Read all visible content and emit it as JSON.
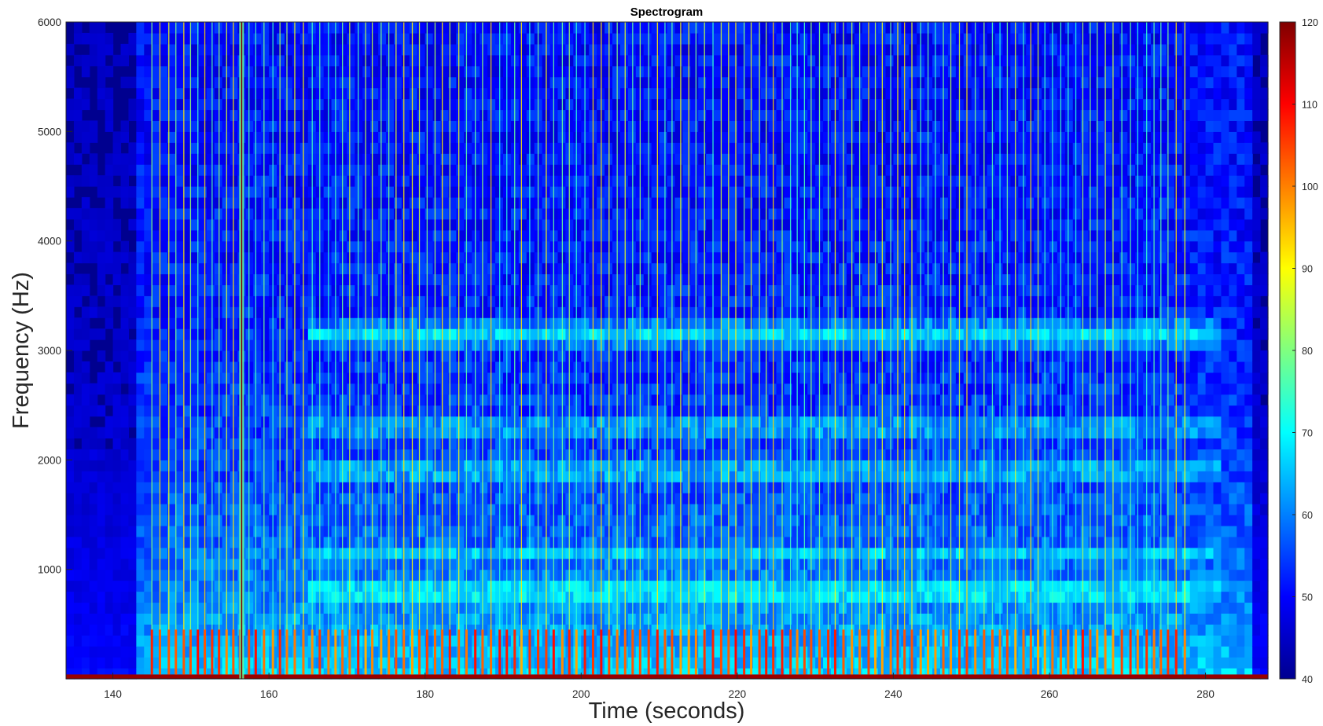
{
  "chart_data": {
    "type": "heatmap",
    "title": "Spectrogram",
    "xlabel": "Time (seconds)",
    "ylabel": "Frequency (Hz)",
    "xlim": [
      134,
      288
    ],
    "ylim": [
      0,
      6000
    ],
    "x_ticks": [
      140,
      160,
      180,
      200,
      220,
      240,
      260,
      280
    ],
    "y_ticks": [
      1000,
      2000,
      3000,
      4000,
      5000,
      6000
    ],
    "colormap": "jet",
    "colorbar": {
      "range": [
        40,
        120
      ],
      "ticks": [
        40,
        50,
        60,
        70,
        80,
        90,
        100,
        110,
        120
      ],
      "placement": "right"
    },
    "background_level": 42,
    "low_frequency_band": {
      "freq_max": 40,
      "level": 118
    },
    "strong_event": {
      "time": 156.5,
      "level": 120
    },
    "onset_interval_seconds": 1.0,
    "onset_times_approx_start": 145,
    "onset_times_approx_end": 278,
    "horizontal_bands_hz": [
      820,
      1150,
      1900,
      3100,
      3200,
      2300
    ]
  }
}
